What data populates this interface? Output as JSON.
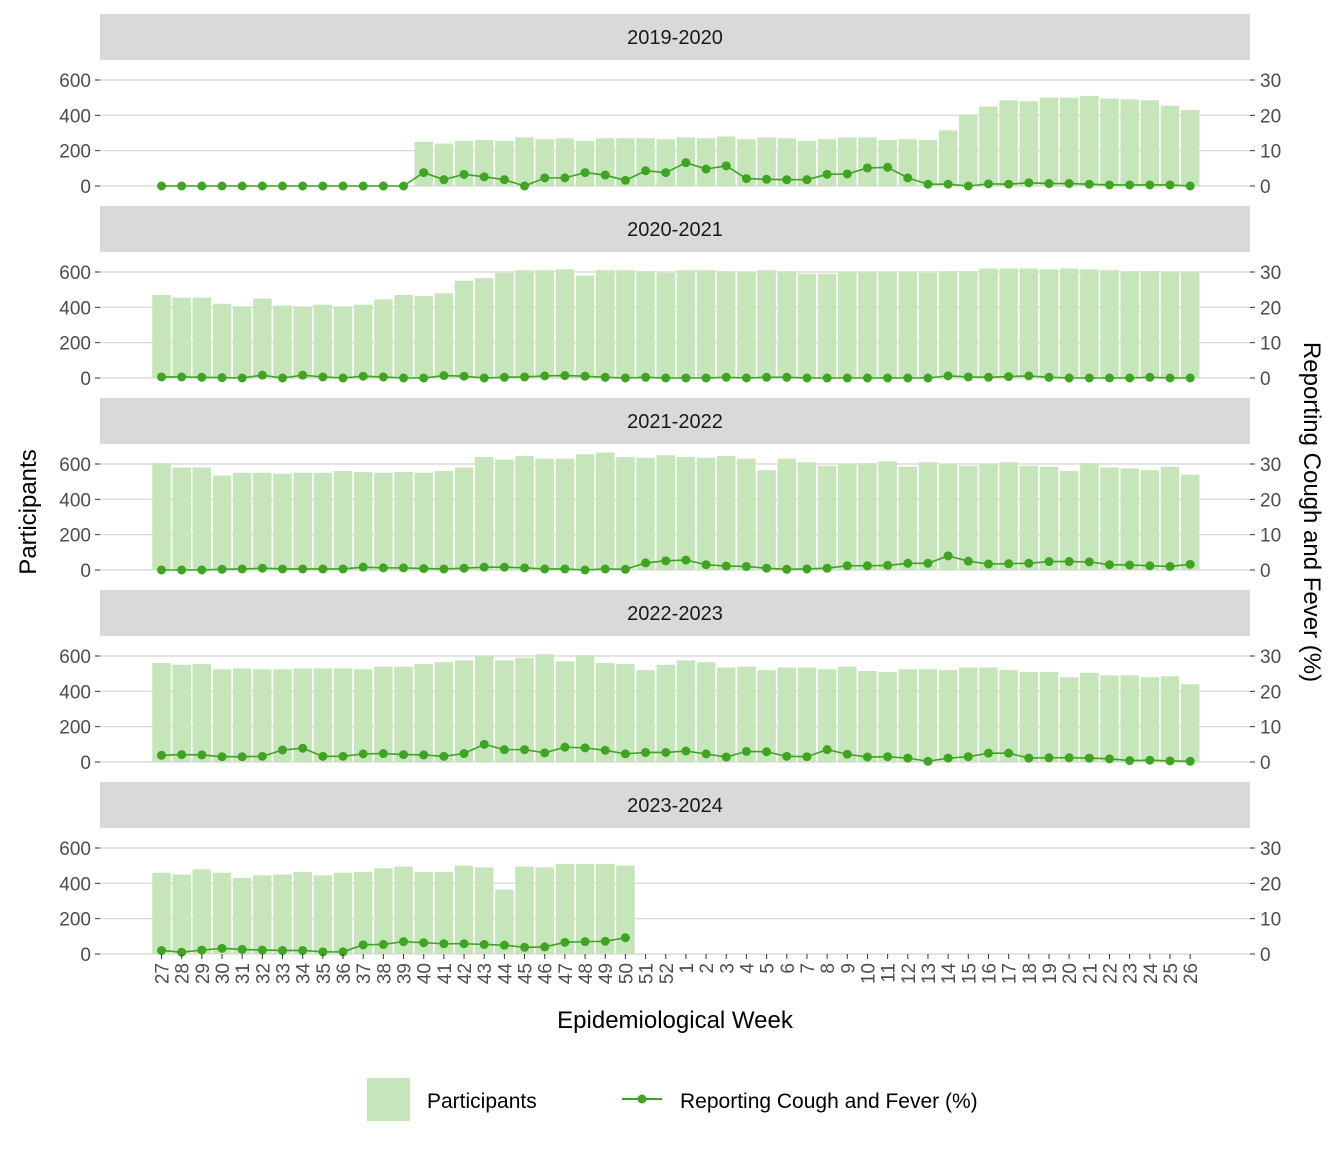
{
  "chart_data": {
    "type": "bar+line",
    "xlabel": "Epidemiological Week",
    "ylabel_left": "Participants",
    "ylabel_right": "Reporting Cough and Fever (%)",
    "y_left_range": [
      0,
      600
    ],
    "y_left_ticks": [
      0,
      200,
      400,
      600
    ],
    "y_right_range": [
      0,
      30
    ],
    "y_right_ticks": [
      0,
      10,
      20,
      30
    ],
    "grid": true,
    "legend_position": "bottom",
    "colors": {
      "bars": "#c7e5bb",
      "line": "#41a323",
      "strip": "#d9d9d9",
      "grid": "#d4d4d4"
    },
    "legend": [
      {
        "label": "Participants",
        "kind": "bar"
      },
      {
        "label": "Reporting Cough and Fever (%)",
        "kind": "line"
      }
    ],
    "weeks": [
      "27",
      "28",
      "29",
      "30",
      "31",
      "32",
      "33",
      "34",
      "35",
      "36",
      "37",
      "38",
      "39",
      "40",
      "41",
      "42",
      "43",
      "44",
      "45",
      "46",
      "47",
      "48",
      "49",
      "50",
      "51",
      "52",
      "1",
      "2",
      "3",
      "4",
      "5",
      "6",
      "7",
      "8",
      "9",
      "10",
      "11",
      "12",
      "13",
      "14",
      "15",
      "16",
      "17",
      "18",
      "19",
      "20",
      "21",
      "22",
      "23",
      "24",
      "25",
      "26"
    ],
    "panels": [
      {
        "season": "2019-2020",
        "participants": [
          null,
          null,
          null,
          null,
          null,
          null,
          null,
          null,
          null,
          null,
          null,
          null,
          null,
          250,
          240,
          255,
          260,
          255,
          275,
          265,
          270,
          255,
          270,
          270,
          270,
          265,
          275,
          270,
          280,
          265,
          275,
          270,
          255,
          265,
          275,
          275,
          260,
          265,
          260,
          315,
          405,
          450,
          485,
          480,
          500,
          500,
          510,
          495,
          490,
          485,
          455,
          430
        ],
        "cough_fever_pct": [
          0,
          0,
          0,
          0,
          0,
          0,
          0,
          0,
          0,
          0,
          0,
          0,
          0,
          3.8,
          1.8,
          3.3,
          2.6,
          1.8,
          0,
          2.3,
          2.3,
          3.8,
          3.1,
          1.6,
          4.3,
          3.8,
          6.6,
          4.8,
          5.7,
          2.1,
          1.9,
          1.8,
          1.8,
          3.3,
          3.4,
          5.1,
          5.3,
          2.3,
          0.5,
          0.5,
          0,
          0.6,
          0.5,
          0.9,
          0.7,
          0.7,
          0.5,
          0.3,
          0.3,
          0.3,
          0.3,
          0
        ]
      },
      {
        "season": "2020-2021",
        "participants": [
          470,
          455,
          455,
          420,
          405,
          450,
          410,
          405,
          415,
          405,
          415,
          445,
          470,
          465,
          480,
          550,
          565,
          595,
          610,
          610,
          615,
          580,
          610,
          610,
          605,
          595,
          610,
          610,
          605,
          600,
          610,
          605,
          590,
          590,
          600,
          600,
          600,
          600,
          595,
          605,
          605,
          620,
          620,
          620,
          615,
          620,
          615,
          610,
          605,
          605,
          600,
          600
        ],
        "cough_fever_pct": [
          0.3,
          0.3,
          0.2,
          0.1,
          0,
          0.8,
          0,
          0.8,
          0.3,
          0,
          0.5,
          0.3,
          0,
          0,
          0.7,
          0.5,
          0,
          0.2,
          0.3,
          0.6,
          0.7,
          0.5,
          0.2,
          0,
          0.2,
          0,
          0,
          0,
          0.2,
          0,
          0.2,
          0.2,
          0,
          0,
          0,
          0,
          0,
          0,
          0,
          0.6,
          0.3,
          0.2,
          0.4,
          0.6,
          0.2,
          0,
          0,
          0,
          0,
          0.2,
          0,
          0
        ]
      },
      {
        "season": "2021-2022",
        "participants": [
          605,
          580,
          580,
          535,
          550,
          550,
          545,
          550,
          550,
          560,
          555,
          550,
          555,
          550,
          560,
          580,
          640,
          625,
          645,
          630,
          630,
          655,
          665,
          640,
          635,
          650,
          640,
          635,
          645,
          630,
          565,
          630,
          610,
          590,
          600,
          605,
          615,
          585,
          610,
          600,
          590,
          600,
          610,
          590,
          585,
          560,
          605,
          580,
          575,
          565,
          585,
          540
        ],
        "cough_fever_pct": [
          0,
          0,
          0,
          0.2,
          0.3,
          0.5,
          0.3,
          0.3,
          0.3,
          0.3,
          0.8,
          0.6,
          0.6,
          0.4,
          0.3,
          0.5,
          0.8,
          0.8,
          0.6,
          0.3,
          0.3,
          0,
          0.3,
          0.2,
          2,
          2.6,
          2.8,
          1.5,
          1.1,
          1,
          0.5,
          0.2,
          0.3,
          0.5,
          1.2,
          1.2,
          1.3,
          1.9,
          1.9,
          4,
          2.5,
          1.7,
          1.8,
          1.9,
          2.4,
          2.4,
          2.3,
          1.5,
          1.4,
          1.2,
          1,
          1.6
        ]
      },
      {
        "season": "2022-2023",
        "participants": [
          560,
          550,
          555,
          525,
          530,
          525,
          525,
          530,
          530,
          530,
          525,
          540,
          540,
          555,
          565,
          575,
          600,
          575,
          590,
          610,
          570,
          605,
          560,
          555,
          520,
          550,
          575,
          565,
          535,
          540,
          520,
          535,
          535,
          525,
          540,
          515,
          510,
          525,
          525,
          520,
          535,
          535,
          520,
          510,
          510,
          480,
          505,
          490,
          490,
          480,
          485,
          440
        ],
        "cough_fever_pct": [
          1.9,
          2.1,
          2,
          1.5,
          1.5,
          1.6,
          3.4,
          3.9,
          1.6,
          1.6,
          2.3,
          2.4,
          2.1,
          2,
          1.6,
          2.4,
          5,
          3.5,
          3.5,
          2.6,
          4.2,
          4,
          3.3,
          2.3,
          2.7,
          2.7,
          3.1,
          2.3,
          1.4,
          3,
          2.9,
          1.6,
          1.5,
          3.5,
          2.2,
          1.4,
          1.5,
          1.1,
          0.2,
          1.1,
          1.5,
          2.5,
          2.5,
          1.1,
          1.2,
          1.2,
          1.1,
          0.9,
          0.4,
          0.5,
          0.3,
          0.2
        ]
      },
      {
        "season": "2023-2024",
        "participants": [
          460,
          450,
          480,
          460,
          430,
          445,
          450,
          465,
          445,
          460,
          465,
          485,
          495,
          465,
          465,
          500,
          490,
          365,
          495,
          490,
          510,
          510,
          510,
          500,
          null,
          null,
          null,
          null,
          null,
          null,
          null,
          null,
          null,
          null,
          null,
          null,
          null,
          null,
          null,
          null,
          null,
          null,
          null,
          null,
          null,
          null,
          null,
          null,
          null,
          null,
          null,
          null
        ],
        "cough_fever_pct": [
          1,
          0.5,
          1.1,
          1.6,
          1.3,
          1.1,
          1,
          1,
          0.6,
          0.6,
          2.6,
          2.7,
          3.5,
          3.2,
          2.9,
          2.9,
          2.7,
          2.5,
          1.9,
          2,
          3.3,
          3.5,
          3.6,
          4.6,
          null,
          null,
          null,
          null,
          null,
          null,
          null,
          null,
          null,
          null,
          null,
          null,
          null,
          null,
          null,
          null,
          null,
          null,
          null,
          null,
          null,
          null,
          null,
          null,
          null,
          null,
          null,
          null
        ]
      }
    ]
  }
}
